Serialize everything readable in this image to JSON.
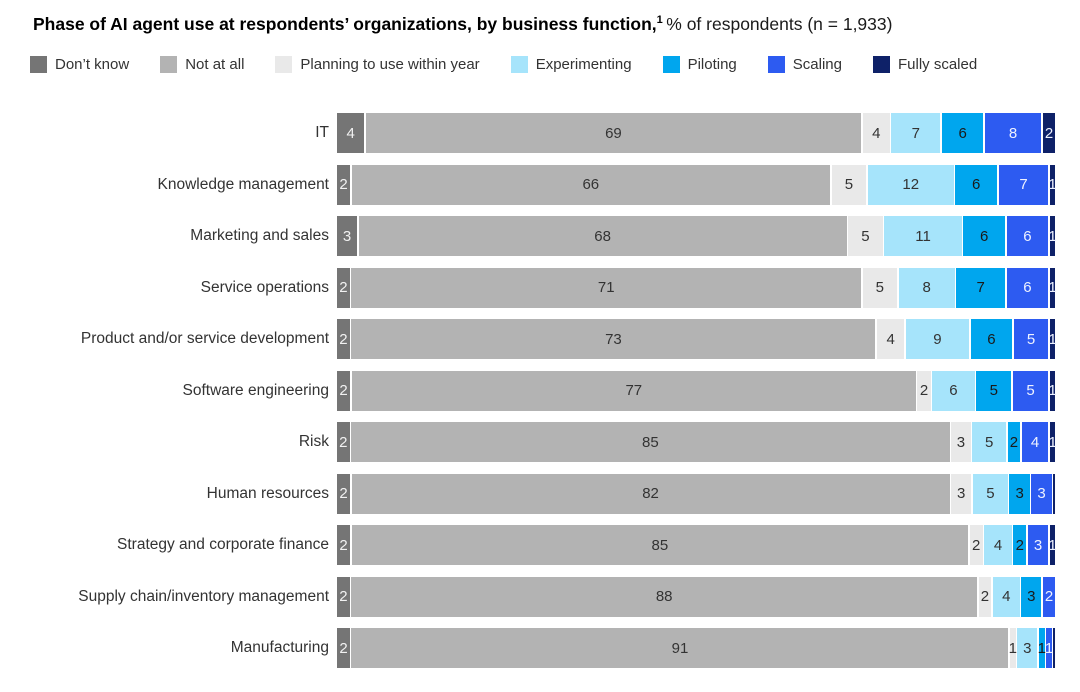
{
  "header": {
    "title_bold": "Phase of AI agent use at respondents’ organizations, by business function,",
    "title_superscript": "1",
    "title_regular": " % of respondents (n = 1,933)"
  },
  "chart_data": {
    "type": "bar",
    "subtype": "horizontal-stacked",
    "title": "Phase of AI agent use at respondents’ organizations, by business function",
    "unit": "% of respondents",
    "sample_size": "n = 1,933",
    "legend_position": "top",
    "axis": {
      "x_range": [
        0,
        100
      ],
      "grid": false,
      "value_labels": "inside segments"
    },
    "series": [
      {
        "name": "Don’t know",
        "color": "#757575",
        "label_color": "#f2f2f2"
      },
      {
        "name": "Not at all",
        "color": "#b3b3b3",
        "label_color": "#333333"
      },
      {
        "name": "Planning to use within year",
        "color": "#e9e9e9",
        "label_color": "#333333"
      },
      {
        "name": "Experimenting",
        "color": "#a6e4fb",
        "label_color": "#333333"
      },
      {
        "name": "Piloting",
        "color": "#00a6ee",
        "label_color": "#1a1a1a"
      },
      {
        "name": "Scaling",
        "color": "#2d5bf1",
        "label_color": "#eef2ff"
      },
      {
        "name": "Fully scaled",
        "color": "#0e2168",
        "label_color": "#eef2ff"
      }
    ],
    "categories": [
      "IT",
      "Knowledge management",
      "Marketing and sales",
      "Service operations",
      "Product and/or service development",
      "Software engineering",
      "Risk",
      "Human resources",
      "Strategy and corporate finance",
      "Supply chain/inventory management",
      "Manufacturing"
    ],
    "rows": [
      {
        "category": "IT",
        "values": [
          4,
          69,
          4,
          7,
          6,
          8,
          2
        ],
        "labels": [
          "4",
          "69",
          "4",
          "7",
          "6",
          "8",
          "2"
        ]
      },
      {
        "category": "Knowledge management",
        "values": [
          2,
          66,
          5,
          12,
          6,
          7,
          1
        ],
        "labels": [
          "2",
          "66",
          "5",
          "12",
          "6",
          "7",
          "1"
        ]
      },
      {
        "category": "Marketing and sales",
        "values": [
          3,
          68,
          5,
          11,
          6,
          6,
          1
        ],
        "labels": [
          "3",
          "68",
          "5",
          "11",
          "6",
          "6",
          "1"
        ]
      },
      {
        "category": "Service operations",
        "values": [
          2,
          71,
          5,
          8,
          7,
          6,
          1
        ],
        "labels": [
          "2",
          "71",
          "5",
          "8",
          "7",
          "6",
          "1"
        ]
      },
      {
        "category": "Product and/or service development",
        "values": [
          2,
          73,
          4,
          9,
          6,
          5,
          1
        ],
        "labels": [
          "2",
          "73",
          "4",
          "9",
          "6",
          "5",
          "1"
        ]
      },
      {
        "category": "Software engineering",
        "values": [
          2,
          77,
          2,
          6,
          5,
          5,
          1
        ],
        "labels": [
          "2",
          "77",
          "2",
          "6",
          "5",
          "5",
          "1"
        ]
      },
      {
        "category": "Risk",
        "values": [
          2,
          85,
          3,
          5,
          2,
          4,
          1
        ],
        "labels": [
          "2",
          "85",
          "3",
          "5",
          "2",
          "4",
          "1"
        ]
      },
      {
        "category": "Human resources",
        "values": [
          2,
          82,
          3,
          5,
          3,
          3,
          0.5
        ],
        "labels": [
          "2",
          "82",
          "3",
          "5",
          "3",
          "3",
          ""
        ]
      },
      {
        "category": "Strategy and corporate finance",
        "values": [
          2,
          85,
          2,
          4,
          2,
          3,
          1
        ],
        "labels": [
          "2",
          "85",
          "2",
          "4",
          "2",
          "3",
          "1"
        ]
      },
      {
        "category": "Supply chain/inventory management",
        "values": [
          2,
          88,
          2,
          4,
          3,
          2,
          0
        ],
        "labels": [
          "2",
          "88",
          "2",
          "4",
          "3",
          "2",
          ""
        ]
      },
      {
        "category": "Manufacturing",
        "values": [
          2,
          91,
          1,
          3,
          1,
          1,
          0.5
        ],
        "labels": [
          "2",
          "91",
          "1",
          "3",
          "1",
          "1",
          ""
        ]
      }
    ]
  }
}
